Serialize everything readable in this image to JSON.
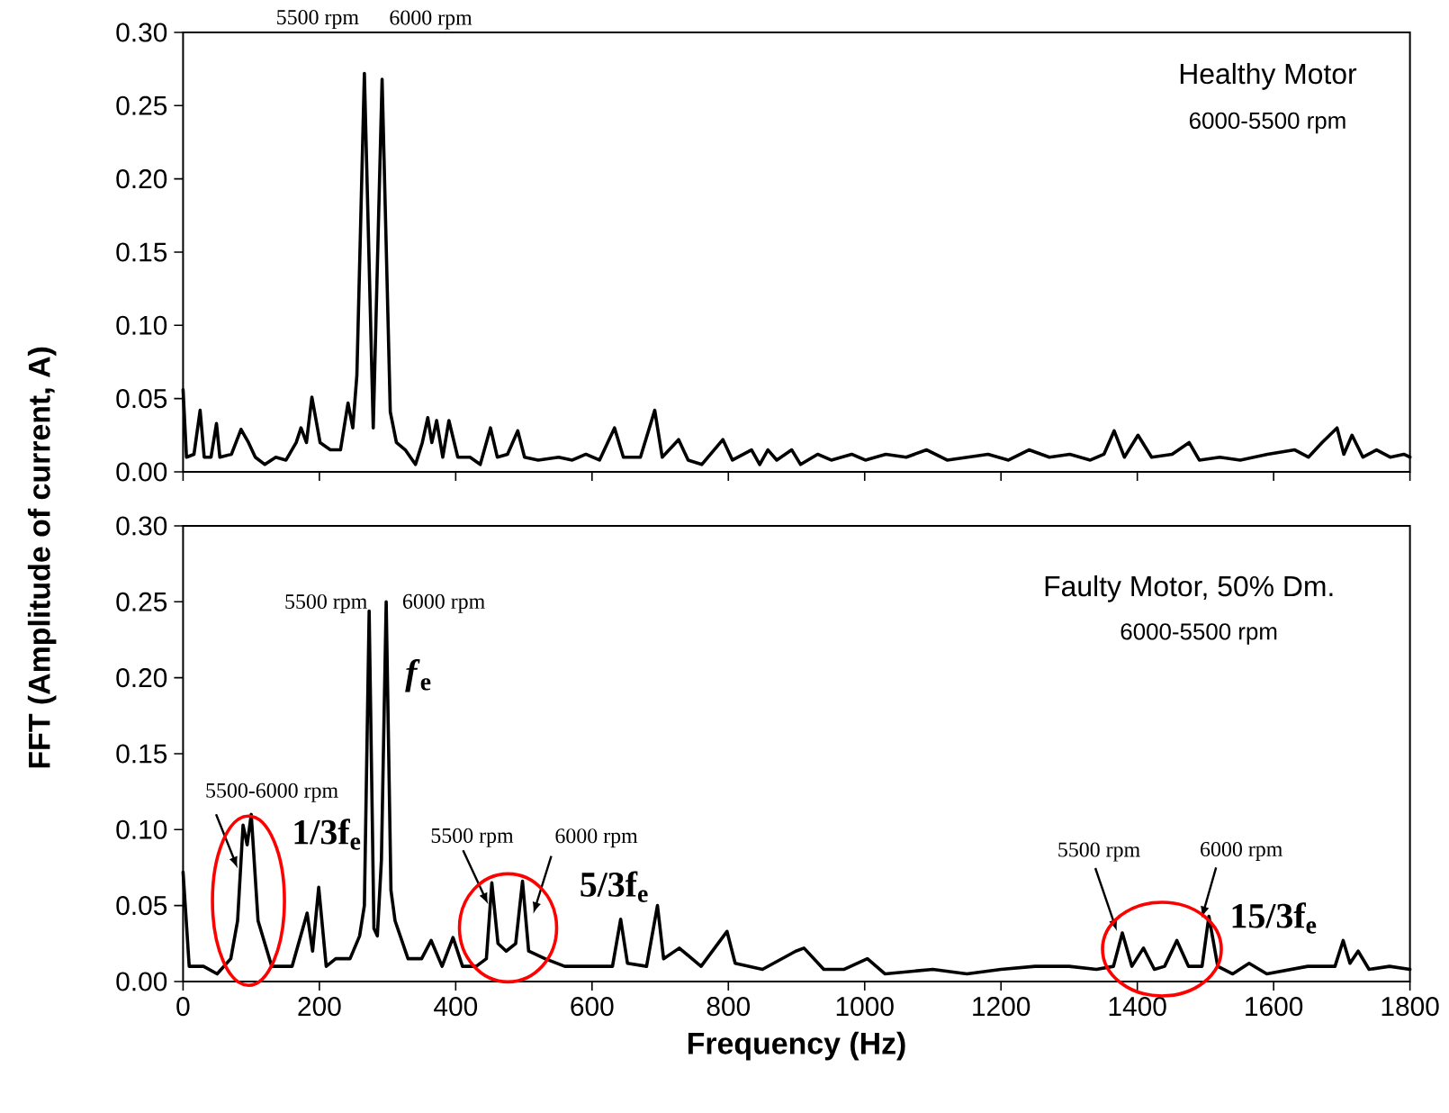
{
  "chart_data": [
    {
      "type": "line",
      "title": "Healthy Motor",
      "subtitle": "6000-5500 rpm",
      "x": [
        0,
        5,
        16,
        25,
        31,
        41,
        49,
        54,
        71,
        85,
        96,
        106,
        120,
        136,
        151,
        166,
        173,
        181,
        189,
        201,
        216,
        231,
        242,
        249,
        255,
        266,
        279,
        292,
        304,
        313,
        326,
        341,
        351,
        359,
        365,
        372,
        381,
        390,
        403,
        421,
        436,
        451,
        461,
        476,
        491,
        501,
        521,
        551,
        571,
        591,
        611,
        633,
        646,
        671,
        692,
        703,
        727,
        741,
        761,
        792,
        806,
        834,
        846,
        858,
        871,
        893,
        906,
        931,
        951,
        981,
        1001,
        1031,
        1061,
        1091,
        1121,
        1151,
        1181,
        1211,
        1241,
        1271,
        1301,
        1331,
        1351,
        1366,
        1381,
        1401,
        1421,
        1451,
        1476,
        1491,
        1521,
        1551,
        1591,
        1631,
        1651,
        1671,
        1693,
        1703,
        1715,
        1731,
        1751,
        1771,
        1791,
        1800
      ],
      "series": [
        {
          "color": "#000000",
          "values": [
            0.056,
            0.01,
            0.012,
            0.042,
            0.01,
            0.01,
            0.033,
            0.01,
            0.012,
            0.029,
            0.02,
            0.01,
            0.005,
            0.01,
            0.008,
            0.02,
            0.03,
            0.02,
            0.051,
            0.02,
            0.015,
            0.015,
            0.047,
            0.03,
            0.066,
            0.272,
            0.03,
            0.268,
            0.041,
            0.02,
            0.015,
            0.005,
            0.02,
            0.037,
            0.02,
            0.035,
            0.01,
            0.035,
            0.01,
            0.01,
            0.005,
            0.03,
            0.01,
            0.012,
            0.028,
            0.01,
            0.008,
            0.01,
            0.008,
            0.012,
            0.008,
            0.03,
            0.01,
            0.01,
            0.042,
            0.01,
            0.022,
            0.008,
            0.005,
            0.022,
            0.008,
            0.015,
            0.005,
            0.015,
            0.008,
            0.015,
            0.005,
            0.012,
            0.008,
            0.012,
            0.008,
            0.012,
            0.01,
            0.015,
            0.008,
            0.01,
            0.012,
            0.008,
            0.015,
            0.01,
            0.012,
            0.008,
            0.012,
            0.028,
            0.01,
            0.025,
            0.01,
            0.012,
            0.02,
            0.008,
            0.01,
            0.008,
            0.012,
            0.015,
            0.01,
            0.02,
            0.03,
            0.012,
            0.025,
            0.01,
            0.015,
            0.01,
            0.012,
            0.01
          ]
        }
      ],
      "xlim": [
        0,
        1800
      ],
      "xticks": [
        0,
        200,
        400,
        600,
        800,
        1000,
        1200,
        1400,
        1600,
        1800
      ],
      "ylim": [
        0,
        0.3
      ],
      "yticks": [
        {
          "value": 0,
          "label": "0.00"
        },
        {
          "value": 0.05,
          "label": "0.05"
        },
        {
          "value": 0.1,
          "label": "0.10"
        },
        {
          "value": 0.15,
          "label": "0.15"
        },
        {
          "value": 0.2,
          "label": "0.20"
        },
        {
          "value": 0.25,
          "label": "0.25"
        },
        {
          "value": 0.3,
          "label": "0.30"
        }
      ],
      "tick_labels": "y",
      "annotations": [
        {
          "text": "5500 rpm",
          "x": 266,
          "y": 0.272
        },
        {
          "text": "6000 rpm",
          "x": 292,
          "y": 0.268
        }
      ]
    },
    {
      "type": "line",
      "title": "Faulty Motor, 50% Dm.",
      "subtitle": "6000-5500 rpm",
      "xlabel": "Frequency (Hz)",
      "ylabel": "FFT (Amplitude of current, A)",
      "x": [
        0,
        9,
        30,
        50,
        70,
        80,
        88,
        94,
        100,
        110,
        130,
        160,
        182,
        190,
        199,
        210,
        224,
        245,
        259,
        266,
        273,
        280,
        285,
        291,
        298,
        305,
        311,
        330,
        350,
        364,
        380,
        396,
        410,
        430,
        445,
        453,
        462,
        474,
        488,
        498,
        507,
        531,
        560,
        600,
        630,
        642,
        652,
        680,
        696,
        705,
        728,
        760,
        798,
        810,
        850,
        899,
        911,
        940,
        970,
        1004,
        1030,
        1100,
        1150,
        1200,
        1250,
        1300,
        1340,
        1365,
        1378,
        1392,
        1409,
        1425,
        1440,
        1458,
        1475,
        1495,
        1505,
        1518,
        1540,
        1564,
        1590,
        1650,
        1690,
        1702,
        1712,
        1724,
        1740,
        1770,
        1800
      ],
      "series": [
        {
          "color": "#000000",
          "values": [
            0.072,
            0.01,
            0.01,
            0.005,
            0.015,
            0.04,
            0.103,
            0.09,
            0.11,
            0.04,
            0.01,
            0.01,
            0.045,
            0.02,
            0.062,
            0.01,
            0.015,
            0.015,
            0.03,
            0.05,
            0.244,
            0.035,
            0.03,
            0.08,
            0.25,
            0.06,
            0.04,
            0.015,
            0.015,
            0.027,
            0.01,
            0.029,
            0.01,
            0.01,
            0.015,
            0.065,
            0.025,
            0.02,
            0.025,
            0.066,
            0.02,
            0.015,
            0.01,
            0.01,
            0.01,
            0.041,
            0.012,
            0.01,
            0.05,
            0.015,
            0.022,
            0.01,
            0.033,
            0.012,
            0.008,
            0.02,
            0.022,
            0.008,
            0.008,
            0.015,
            0.005,
            0.008,
            0.005,
            0.008,
            0.01,
            0.01,
            0.008,
            0.01,
            0.032,
            0.01,
            0.022,
            0.008,
            0.01,
            0.027,
            0.01,
            0.01,
            0.043,
            0.01,
            0.005,
            0.012,
            0.005,
            0.01,
            0.01,
            0.027,
            0.012,
            0.02,
            0.008,
            0.01,
            0.008
          ]
        }
      ],
      "xlim": [
        0,
        1800
      ],
      "xticks": [
        0,
        200,
        400,
        600,
        800,
        1000,
        1200,
        1400,
        1600,
        1800
      ],
      "ylim": [
        0,
        0.3
      ],
      "yticks": [
        {
          "value": 0,
          "label": "0.00"
        },
        {
          "value": 0.05,
          "label": "0.05"
        },
        {
          "value": 0.1,
          "label": "0.10"
        },
        {
          "value": 0.15,
          "label": "0.15"
        },
        {
          "value": 0.2,
          "label": "0.20"
        },
        {
          "value": 0.25,
          "label": "0.25"
        },
        {
          "value": 0.3,
          "label": "0.30"
        }
      ],
      "annotations": [
        {
          "text": "5500 rpm",
          "x": 273,
          "y": 0.244
        },
        {
          "text": "6000 rpm",
          "x": 298,
          "y": 0.25
        },
        {
          "text": "*f*$_{e}$",
          "x": 298,
          "y": 0.25
        },
        {
          "text": "5500-6000 rpm",
          "x": 88,
          "y": 0.103
        },
        {
          "text": "1/3f$_{e}$",
          "x": 100,
          "y": 0.11
        },
        {
          "text": "5500 rpm",
          "x": 453,
          "y": 0.065
        },
        {
          "text": "6000 rpm",
          "x": 498,
          "y": 0.066
        },
        {
          "text": "5/3f$_{e}$",
          "x": 498,
          "y": 0.066
        },
        {
          "text": "5500 rpm",
          "x": 1378,
          "y": 0.032
        },
        {
          "text": "6000 rpm",
          "x": 1505,
          "y": 0.043
        },
        {
          "text": "15/3f$_{e}$",
          "x": 1505,
          "y": 0.043
        }
      ]
    }
  ]
}
